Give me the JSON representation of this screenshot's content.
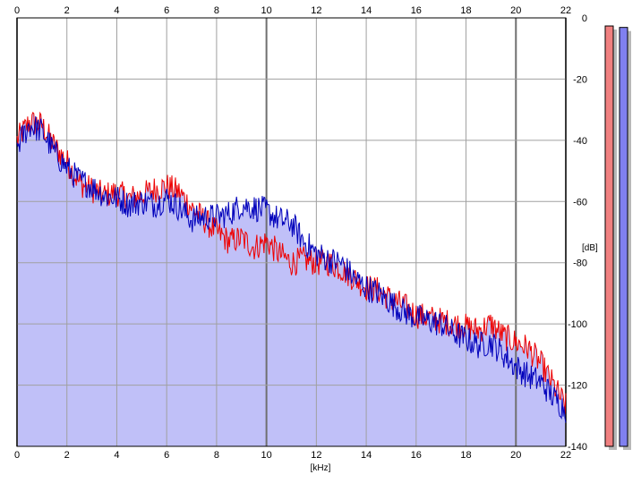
{
  "chart_data": {
    "type": "area",
    "xlabel": "[kHz]",
    "ylabel": "[dB]",
    "xlim": [
      0,
      22
    ],
    "ylim": [
      -140,
      0
    ],
    "x_ticks": [
      0,
      2,
      4,
      6,
      8,
      10,
      12,
      14,
      16,
      18,
      20,
      22
    ],
    "x_tick_labels": [
      "0",
      "2",
      "4",
      "6",
      "8",
      "10",
      "12",
      "14",
      "16",
      "18",
      "20",
      "22"
    ],
    "y_ticks": [
      0,
      -20,
      -40,
      -60,
      -80,
      -100,
      -120,
      -140
    ],
    "y_tick_labels": [
      "0",
      "-20",
      "-40",
      "-60",
      "-80",
      "-100",
      "-120",
      "-140"
    ],
    "grid": true,
    "x": [
      0.0,
      0.5,
      1.0,
      1.5,
      2.0,
      2.5,
      3.0,
      3.5,
      4.0,
      4.5,
      5.0,
      5.5,
      6.0,
      6.5,
      7.0,
      7.5,
      8.0,
      8.5,
      9.0,
      9.5,
      10.0,
      10.5,
      11.0,
      11.5,
      12.0,
      12.5,
      13.0,
      13.5,
      14.0,
      14.5,
      15.0,
      15.5,
      16.0,
      16.5,
      17.0,
      17.5,
      18.0,
      18.5,
      19.0,
      19.5,
      20.0,
      20.5,
      21.0,
      21.5,
      22.0
    ],
    "series": [
      {
        "color": "#ee0000",
        "values": [
          -40,
          -34,
          -35,
          -42,
          -47,
          -54,
          -56,
          -58,
          -57,
          -59,
          -58,
          -56,
          -55,
          -57,
          -62,
          -66,
          -70,
          -73,
          -72,
          -75,
          -73,
          -77,
          -80,
          -79,
          -80,
          -80,
          -82,
          -85,
          -88,
          -89,
          -92,
          -94,
          -97,
          -98,
          -99,
          -100,
          -101,
          -102,
          -100,
          -104,
          -106,
          -108,
          -113,
          -120,
          -127
        ]
      },
      {
        "color": "#0000bb",
        "values": [
          -42,
          -35,
          -37,
          -44,
          -49,
          -53,
          -55,
          -58,
          -59,
          -61,
          -60,
          -61,
          -59,
          -62,
          -66,
          -65,
          -65,
          -64,
          -61,
          -62,
          -63,
          -66,
          -67,
          -73,
          -77,
          -79,
          -80,
          -85,
          -88,
          -90,
          -93,
          -96,
          -98,
          -99,
          -100,
          -103,
          -105,
          -107,
          -106,
          -110,
          -114,
          -117,
          -119,
          -124,
          -128
        ]
      }
    ],
    "fill_color": "#c0c0f8",
    "level_meters": [
      {
        "color": "#f08080",
        "level_db": -11
      },
      {
        "color": "#8080f0",
        "level_db": -13
      }
    ]
  }
}
